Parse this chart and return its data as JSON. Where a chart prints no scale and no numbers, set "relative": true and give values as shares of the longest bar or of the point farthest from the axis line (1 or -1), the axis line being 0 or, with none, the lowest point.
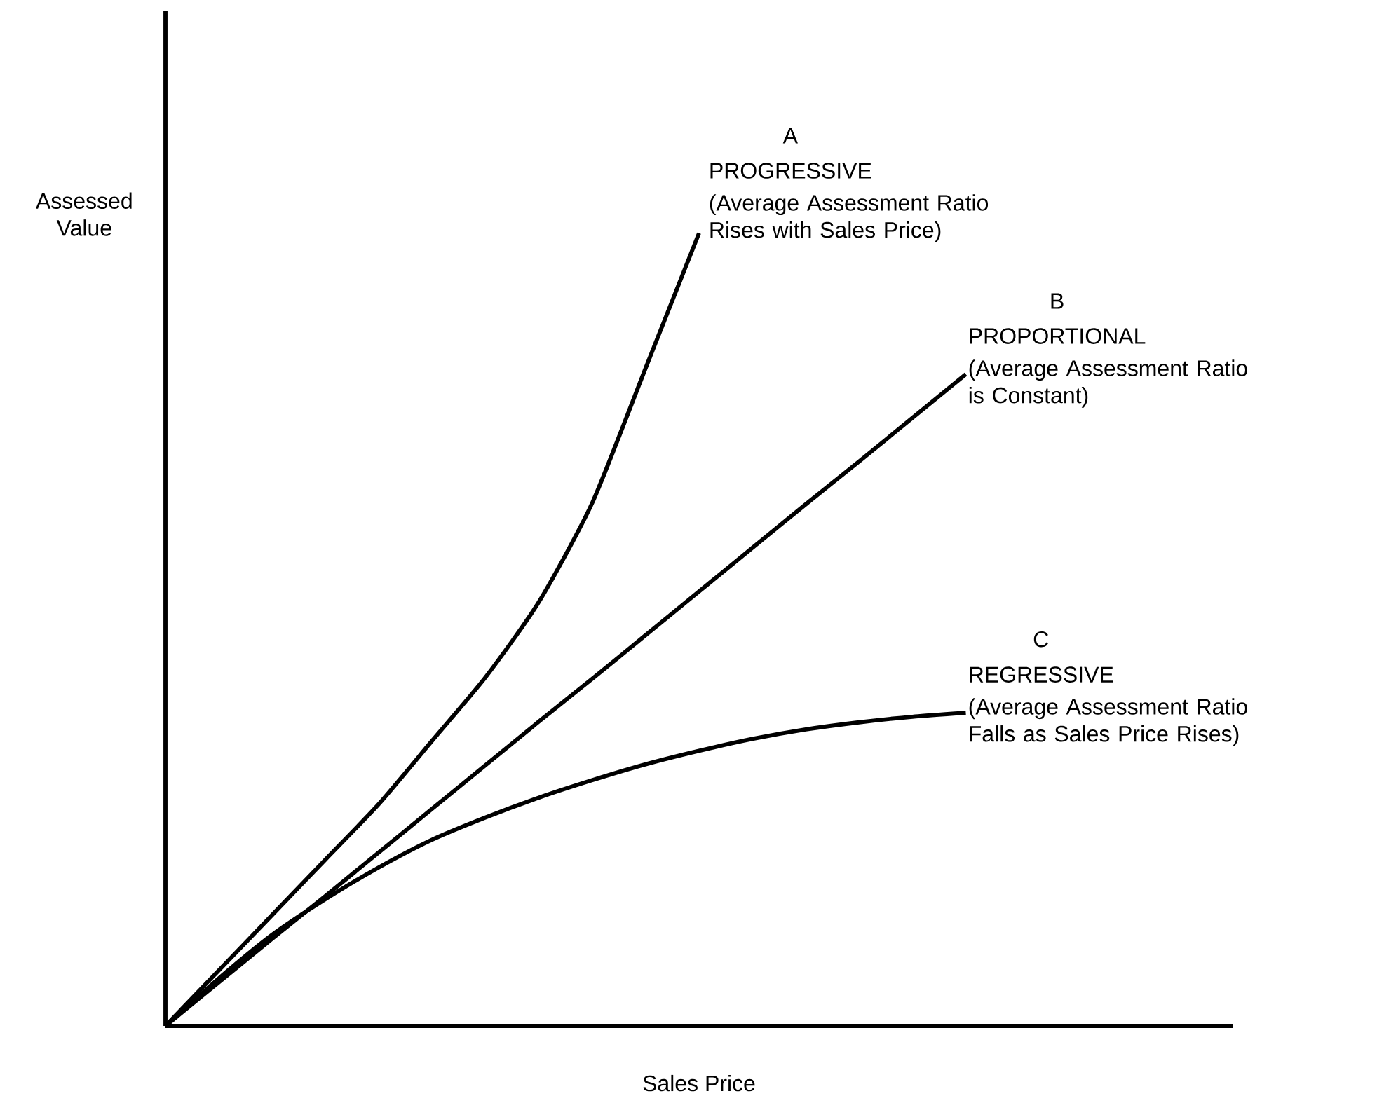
{
  "chart_data": {
    "type": "line",
    "relative": true,
    "xlabel": "Sales Price",
    "ylabel": "Assessed Value",
    "categories": [
      null,
      null,
      null,
      null,
      null,
      null,
      null,
      null,
      null,
      null,
      null,
      null,
      null,
      null,
      null,
      null,
      null,
      null,
      null,
      null,
      null
    ],
    "series": [
      {
        "name": "PROGRESSIVE",
        "color": "#000000",
        "values": [
          0,
          0.07,
          0.14,
          0.21,
          0.28,
          0.36,
          0.44,
          0.535,
          0.66,
          0.83,
          1.0,
          null,
          null,
          null,
          null,
          null,
          null,
          null,
          null,
          null,
          null
        ]
      },
      {
        "name": "PROPORTIONAL",
        "color": "#000000",
        "values": [
          0,
          0.055,
          0.11,
          0.164,
          0.219,
          0.274,
          0.329,
          0.384,
          0.438,
          0.493,
          0.548,
          0.603,
          0.658,
          0.712,
          0.767,
          0.822,
          null,
          null,
          null,
          null,
          null
        ]
      },
      {
        "name": "REGRESSIVE",
        "color": "#000000",
        "values": [
          0,
          0.06,
          0.115,
          0.16,
          0.2,
          0.235,
          0.263,
          0.288,
          0.31,
          0.33,
          0.347,
          0.362,
          0.374,
          0.383,
          0.39,
          0.395,
          null,
          null,
          null,
          null,
          null
        ]
      }
    ],
    "annotations": [
      "A",
      "(Average Assessment Ratio Rises with Sales Price)",
      "B",
      "(Average Assessment Ratio is Constant)",
      "C",
      "(Average Assessment Ratio Falls as Sales Price Rises)"
    ],
    "marker": "none",
    "line_style": "solid"
  }
}
